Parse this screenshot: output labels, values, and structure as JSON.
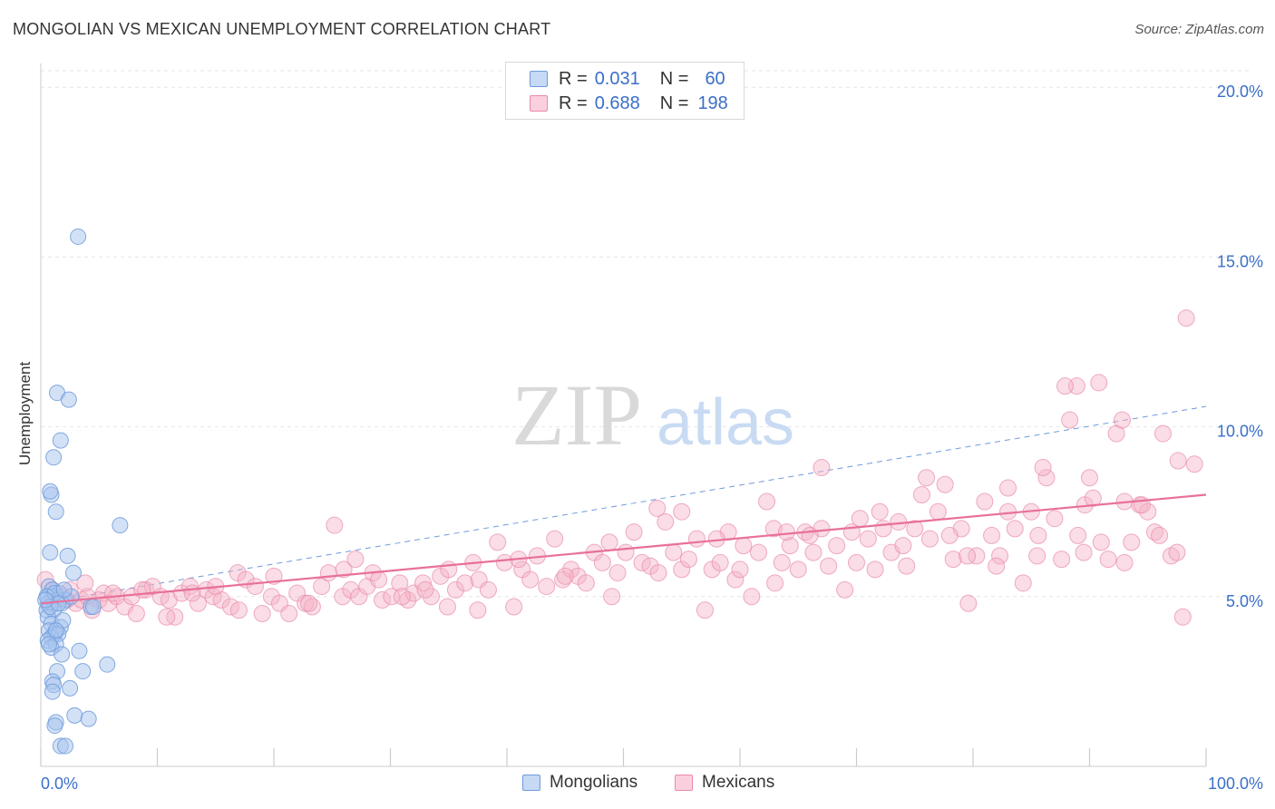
{
  "header": {
    "title": "MONGOLIAN VS MEXICAN UNEMPLOYMENT CORRELATION CHART",
    "source": "Source: ZipAtlas.com"
  },
  "watermark": {
    "zip": "ZIP",
    "atlas": "atlas"
  },
  "legend": {
    "rows": [
      {
        "r_label": "R =",
        "r_value": "0.031",
        "n_label": "N =",
        "n_value": "60",
        "color": "#a8c4ee"
      },
      {
        "r_label": "R =",
        "r_value": "0.688",
        "n_label": "N =",
        "n_value": "198",
        "color": "#f5b3c8"
      }
    ]
  },
  "bottom_legend": [
    {
      "label": "Mongolians",
      "color": "#a8c4ee"
    },
    {
      "label": "Mexicans",
      "color": "#f5b3c8"
    }
  ],
  "colors": {
    "mongolian_fill": "#a8c4ee",
    "mongolian_stroke": "#6e9bdc",
    "mexican_fill": "#f5b3c8",
    "mexican_stroke": "#e98aaa",
    "mexican_trend": "#e8709a",
    "mongolian_trend": "#6e9bdc",
    "tick_label": "#3a6fc7"
  },
  "chart_data": {
    "type": "scatter",
    "title": "MONGOLIAN VS MEXICAN UNEMPLOYMENT CORRELATION CHART",
    "xlabel": "",
    "ylabel": "Unemployment",
    "xlim": [
      0,
      100
    ],
    "ylim": [
      0,
      20.7
    ],
    "x_tick_labels": [
      "0.0%",
      "100.0%"
    ],
    "y_ticks": [
      5,
      10,
      15,
      20
    ],
    "y_tick_labels": [
      "5.0%",
      "10.0%",
      "15.0%",
      "20.0%"
    ],
    "grid": true,
    "legend_position": "top-center",
    "series": [
      {
        "name": "Mongolians",
        "R": 0.031,
        "N": 60,
        "trend": {
          "x": [
            0,
            100
          ],
          "y": [
            4.8,
            10.6
          ],
          "style": "dashed"
        },
        "points": [
          [
            3.2,
            15.6
          ],
          [
            1.4,
            11.0
          ],
          [
            2.4,
            10.8
          ],
          [
            1.7,
            9.6
          ],
          [
            1.1,
            9.1
          ],
          [
            0.9,
            8.0
          ],
          [
            0.8,
            8.1
          ],
          [
            1.3,
            7.5
          ],
          [
            6.8,
            7.1
          ],
          [
            0.8,
            6.3
          ],
          [
            2.3,
            6.2
          ],
          [
            2.8,
            5.7
          ],
          [
            0.7,
            5.3
          ],
          [
            1.0,
            5.2
          ],
          [
            1.6,
            5.1
          ],
          [
            0.6,
            5.0
          ],
          [
            1.0,
            5.0
          ],
          [
            1.4,
            4.9
          ],
          [
            2.1,
            4.9
          ],
          [
            0.6,
            4.8
          ],
          [
            1.8,
            4.8
          ],
          [
            4.3,
            4.7
          ],
          [
            0.5,
            4.6
          ],
          [
            1.1,
            4.6
          ],
          [
            0.6,
            4.4
          ],
          [
            0.9,
            4.2
          ],
          [
            1.7,
            4.1
          ],
          [
            0.7,
            4.0
          ],
          [
            1.2,
            3.9
          ],
          [
            0.9,
            3.8
          ],
          [
            1.5,
            3.9
          ],
          [
            0.6,
            3.7
          ],
          [
            1.3,
            3.6
          ],
          [
            0.9,
            3.5
          ],
          [
            3.3,
            3.4
          ],
          [
            1.8,
            3.3
          ],
          [
            5.7,
            3.0
          ],
          [
            1.4,
            2.8
          ],
          [
            3.6,
            2.8
          ],
          [
            1.0,
            2.5
          ],
          [
            1.1,
            2.4
          ],
          [
            2.5,
            2.3
          ],
          [
            1.0,
            2.2
          ],
          [
            2.9,
            1.5
          ],
          [
            4.1,
            1.4
          ],
          [
            1.3,
            1.3
          ],
          [
            1.2,
            1.2
          ],
          [
            1.7,
            0.6
          ],
          [
            2.1,
            0.6
          ],
          [
            0.5,
            5.0
          ],
          [
            1.2,
            5.1
          ],
          [
            0.8,
            4.7
          ],
          [
            1.5,
            4.8
          ],
          [
            2.6,
            5.0
          ],
          [
            0.4,
            4.9
          ],
          [
            1.9,
            4.3
          ],
          [
            0.7,
            3.6
          ],
          [
            1.3,
            4.0
          ],
          [
            2.0,
            5.2
          ],
          [
            4.5,
            4.7
          ]
        ]
      },
      {
        "name": "Mexicans",
        "R": 0.688,
        "N": 198,
        "trend": {
          "x": [
            0,
            100
          ],
          "y": [
            4.8,
            8.0
          ],
          "style": "solid"
        },
        "points": [
          [
            0.4,
            5.5
          ],
          [
            1.0,
            5.2
          ],
          [
            1.8,
            5.0
          ],
          [
            2.5,
            5.2
          ],
          [
            3.0,
            4.8
          ],
          [
            3.5,
            4.9
          ],
          [
            4.0,
            5.0
          ],
          [
            4.4,
            4.6
          ],
          [
            5.0,
            4.9
          ],
          [
            5.4,
            5.1
          ],
          [
            5.8,
            4.8
          ],
          [
            6.5,
            5.0
          ],
          [
            7.2,
            4.7
          ],
          [
            7.8,
            5.0
          ],
          [
            8.2,
            4.5
          ],
          [
            9.0,
            5.2
          ],
          [
            9.6,
            5.3
          ],
          [
            10.3,
            5.0
          ],
          [
            11.0,
            4.9
          ],
          [
            11.5,
            4.4
          ],
          [
            12.1,
            5.1
          ],
          [
            12.8,
            5.3
          ],
          [
            13.5,
            4.8
          ],
          [
            14.2,
            5.2
          ],
          [
            14.8,
            5.0
          ],
          [
            15.5,
            4.9
          ],
          [
            16.3,
            4.7
          ],
          [
            16.9,
            5.7
          ],
          [
            17.6,
            5.5
          ],
          [
            18.4,
            5.3
          ],
          [
            19.0,
            4.5
          ],
          [
            19.8,
            5.0
          ],
          [
            20.5,
            4.8
          ],
          [
            21.3,
            4.5
          ],
          [
            22.0,
            5.1
          ],
          [
            22.7,
            4.8
          ],
          [
            23.3,
            4.7
          ],
          [
            24.1,
            5.3
          ],
          [
            24.7,
            5.7
          ],
          [
            25.2,
            7.1
          ],
          [
            25.9,
            5.0
          ],
          [
            26.6,
            5.2
          ],
          [
            27.3,
            5.0
          ],
          [
            28.0,
            5.3
          ],
          [
            28.5,
            5.7
          ],
          [
            29.3,
            4.9
          ],
          [
            30.1,
            5.0
          ],
          [
            30.8,
            5.4
          ],
          [
            31.5,
            4.9
          ],
          [
            32.0,
            5.1
          ],
          [
            32.8,
            5.4
          ],
          [
            33.5,
            5.0
          ],
          [
            34.3,
            5.6
          ],
          [
            34.9,
            4.7
          ],
          [
            35.6,
            5.2
          ],
          [
            36.4,
            5.4
          ],
          [
            37.1,
            6.0
          ],
          [
            37.6,
            5.5
          ],
          [
            38.4,
            5.2
          ],
          [
            39.2,
            6.6
          ],
          [
            39.8,
            6.0
          ],
          [
            40.6,
            4.7
          ],
          [
            41.3,
            5.8
          ],
          [
            42.0,
            5.5
          ],
          [
            42.6,
            6.2
          ],
          [
            43.4,
            5.3
          ],
          [
            44.1,
            6.7
          ],
          [
            44.8,
            5.5
          ],
          [
            45.5,
            5.8
          ],
          [
            46.1,
            5.6
          ],
          [
            46.8,
            5.4
          ],
          [
            47.5,
            6.3
          ],
          [
            48.2,
            6.0
          ],
          [
            48.8,
            6.6
          ],
          [
            49.5,
            5.7
          ],
          [
            50.2,
            6.3
          ],
          [
            50.9,
            6.9
          ],
          [
            51.6,
            6.0
          ],
          [
            52.3,
            5.9
          ],
          [
            52.9,
            7.6
          ],
          [
            53.6,
            7.2
          ],
          [
            54.3,
            6.3
          ],
          [
            55.0,
            5.8
          ],
          [
            55.6,
            6.1
          ],
          [
            56.3,
            6.7
          ],
          [
            57.0,
            4.6
          ],
          [
            57.6,
            5.8
          ],
          [
            58.3,
            6.0
          ],
          [
            59.0,
            6.9
          ],
          [
            59.6,
            5.5
          ],
          [
            60.3,
            6.5
          ],
          [
            61.0,
            5.0
          ],
          [
            61.6,
            6.3
          ],
          [
            62.3,
            7.8
          ],
          [
            62.9,
            7.0
          ],
          [
            63.6,
            6.0
          ],
          [
            64.3,
            6.5
          ],
          [
            65.0,
            5.8
          ],
          [
            65.6,
            6.9
          ],
          [
            66.3,
            6.3
          ],
          [
            67.0,
            7.0
          ],
          [
            67.6,
            5.9
          ],
          [
            68.3,
            6.5
          ],
          [
            69.0,
            5.2
          ],
          [
            69.6,
            6.9
          ],
          [
            70.3,
            7.3
          ],
          [
            71.0,
            6.7
          ],
          [
            71.6,
            5.8
          ],
          [
            72.3,
            7.0
          ],
          [
            73.0,
            6.3
          ],
          [
            73.6,
            7.2
          ],
          [
            74.3,
            5.9
          ],
          [
            75.0,
            7.0
          ],
          [
            75.6,
            8.0
          ],
          [
            76.3,
            6.7
          ],
          [
            77.0,
            7.5
          ],
          [
            77.6,
            8.3
          ],
          [
            78.3,
            6.1
          ],
          [
            79.0,
            7.0
          ],
          [
            79.6,
            4.8
          ],
          [
            80.3,
            6.2
          ],
          [
            81.0,
            7.8
          ],
          [
            81.6,
            6.8
          ],
          [
            82.3,
            6.2
          ],
          [
            83.0,
            8.2
          ],
          [
            83.6,
            7.0
          ],
          [
            84.3,
            5.4
          ],
          [
            85.0,
            7.5
          ],
          [
            85.6,
            6.8
          ],
          [
            86.3,
            8.5
          ],
          [
            87.0,
            7.3
          ],
          [
            87.6,
            6.1
          ],
          [
            88.3,
            10.2
          ],
          [
            89.0,
            6.8
          ],
          [
            89.6,
            7.7
          ],
          [
            90.3,
            7.9
          ],
          [
            91.0,
            6.6
          ],
          [
            91.6,
            6.1
          ],
          [
            92.3,
            9.8
          ],
          [
            93.0,
            7.8
          ],
          [
            93.6,
            6.6
          ],
          [
            94.3,
            7.7
          ],
          [
            95.0,
            7.5
          ],
          [
            95.6,
            6.9
          ],
          [
            96.3,
            9.8
          ],
          [
            97.0,
            6.2
          ],
          [
            97.6,
            9.0
          ],
          [
            98.3,
            13.2
          ],
          [
            99.0,
            8.9
          ],
          [
            98.0,
            4.4
          ],
          [
            92.8,
            10.2
          ],
          [
            90.8,
            11.3
          ],
          [
            88.9,
            11.2
          ],
          [
            87.9,
            11.2
          ],
          [
            55.0,
            7.5
          ],
          [
            58.0,
            6.7
          ],
          [
            64.0,
            6.9
          ],
          [
            67.0,
            8.8
          ],
          [
            72.0,
            7.5
          ],
          [
            76.0,
            8.5
          ],
          [
            79.5,
            6.2
          ],
          [
            83.0,
            7.5
          ],
          [
            86.0,
            8.8
          ],
          [
            90.0,
            8.5
          ],
          [
            94.5,
            7.7
          ],
          [
            97.5,
            6.3
          ],
          [
            26.0,
            5.8
          ],
          [
            31.0,
            5.0
          ],
          [
            35.0,
            5.8
          ],
          [
            41.0,
            6.1
          ],
          [
            45.0,
            5.6
          ],
          [
            49.0,
            5.0
          ],
          [
            53.0,
            5.7
          ],
          [
            60.0,
            5.8
          ],
          [
            63.0,
            5.4
          ],
          [
            66.0,
            6.8
          ],
          [
            70.0,
            6.0
          ],
          [
            74.0,
            6.5
          ],
          [
            78.0,
            6.8
          ],
          [
            82.0,
            5.9
          ],
          [
            85.5,
            6.2
          ],
          [
            89.5,
            6.3
          ],
          [
            93.0,
            6.0
          ],
          [
            96.0,
            6.8
          ],
          [
            8.7,
            5.2
          ],
          [
            13.0,
            5.1
          ],
          [
            17.0,
            4.6
          ],
          [
            20.0,
            5.6
          ],
          [
            23.0,
            4.8
          ],
          [
            27.0,
            6.1
          ],
          [
            29.0,
            5.5
          ],
          [
            33.0,
            5.2
          ],
          [
            37.5,
            4.6
          ],
          [
            3.8,
            5.4
          ],
          [
            2.2,
            4.9
          ],
          [
            6.2,
            5.1
          ],
          [
            10.8,
            4.4
          ],
          [
            15.0,
            5.3
          ]
        ]
      }
    ]
  }
}
